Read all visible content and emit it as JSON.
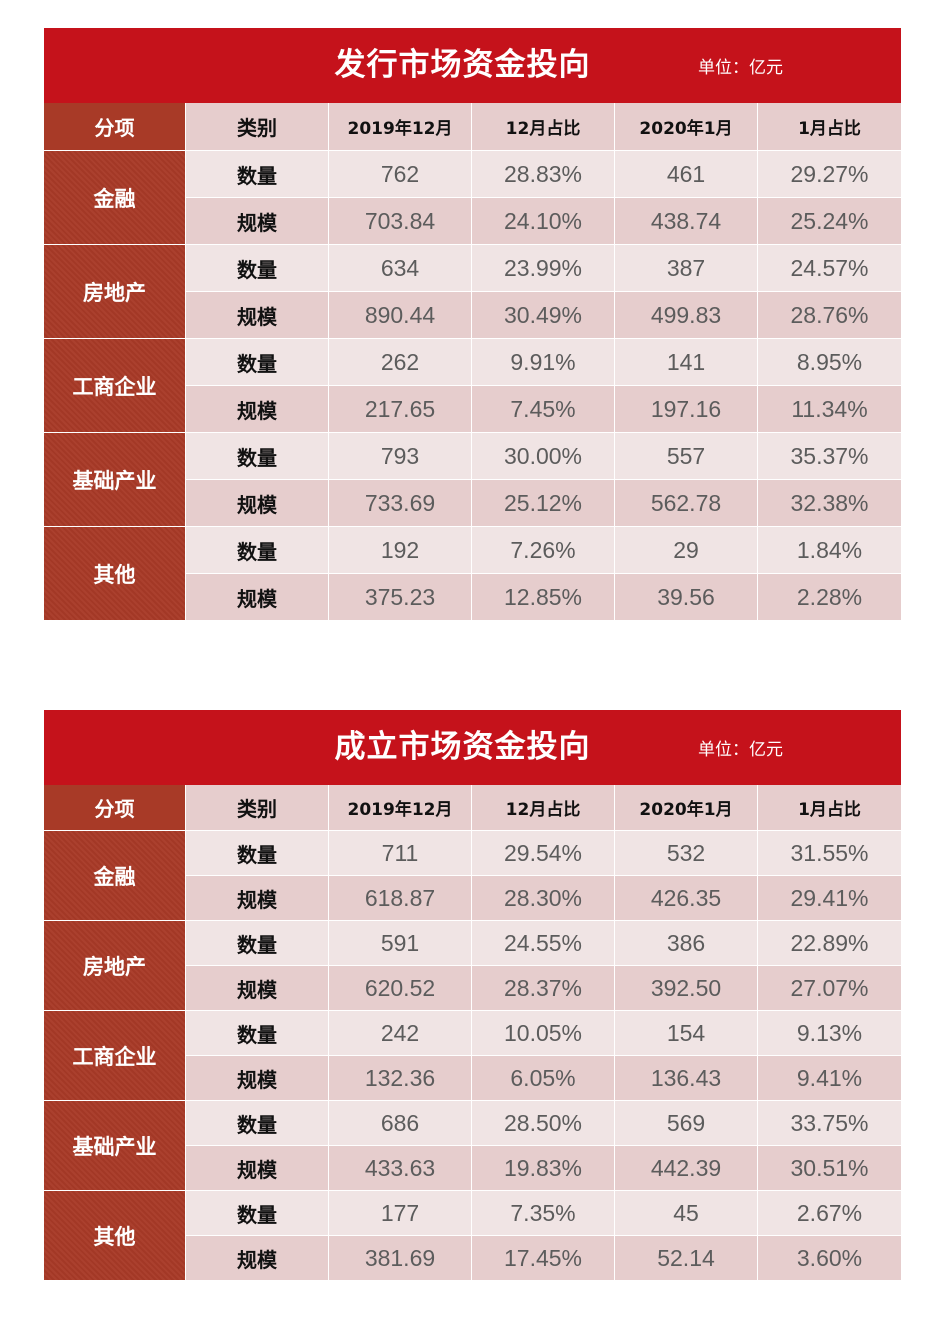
{
  "unit_label": "单位：亿元",
  "headers": [
    "分项",
    "类别",
    "2019年12月",
    "12月占比",
    "2020年1月",
    "1月占比"
  ],
  "tables": [
    {
      "title": "发行市场资金投向",
      "rows": [
        {
          "category": "金融",
          "items": [
            {
              "kind": "数量",
              "values": [
                "762",
                "28.83%",
                "461",
                "29.27%"
              ]
            },
            {
              "kind": "规模",
              "values": [
                "703.84",
                "24.10%",
                "438.74",
                "25.24%"
              ]
            }
          ]
        },
        {
          "category": "房地产",
          "items": [
            {
              "kind": "数量",
              "values": [
                "634",
                "23.99%",
                "387",
                "24.57%"
              ]
            },
            {
              "kind": "规模",
              "values": [
                "890.44",
                "30.49%",
                "499.83",
                "28.76%"
              ]
            }
          ]
        },
        {
          "category": "工商企业",
          "items": [
            {
              "kind": "数量",
              "values": [
                "262",
                "9.91%",
                "141",
                "8.95%"
              ]
            },
            {
              "kind": "规模",
              "values": [
                "217.65",
                "7.45%",
                "197.16",
                "11.34%"
              ]
            }
          ]
        },
        {
          "category": "基础产业",
          "items": [
            {
              "kind": "数量",
              "values": [
                "793",
                "30.00%",
                "557",
                "35.37%"
              ]
            },
            {
              "kind": "规模",
              "values": [
                "733.69",
                "25.12%",
                "562.78",
                "32.38%"
              ]
            }
          ]
        },
        {
          "category": "其他",
          "items": [
            {
              "kind": "数量",
              "values": [
                "192",
                "7.26%",
                "29",
                "1.84%"
              ]
            },
            {
              "kind": "规模",
              "values": [
                "375.23",
                "12.85%",
                "39.56",
                "2.28%"
              ]
            }
          ]
        }
      ]
    },
    {
      "title": "成立市场资金投向",
      "rows": [
        {
          "category": "金融",
          "items": [
            {
              "kind": "数量",
              "values": [
                "711",
                "29.54%",
                "532",
                "31.55%"
              ]
            },
            {
              "kind": "规模",
              "values": [
                "618.87",
                "28.30%",
                "426.35",
                "29.41%"
              ]
            }
          ]
        },
        {
          "category": "房地产",
          "items": [
            {
              "kind": "数量",
              "values": [
                "591",
                "24.55%",
                "386",
                "22.89%"
              ]
            },
            {
              "kind": "规模",
              "values": [
                "620.52",
                "28.37%",
                "392.50",
                "27.07%"
              ]
            }
          ]
        },
        {
          "category": "工商企业",
          "items": [
            {
              "kind": "数量",
              "values": [
                "242",
                "10.05%",
                "154",
                "9.13%"
              ]
            },
            {
              "kind": "规模",
              "values": [
                "132.36",
                "6.05%",
                "136.43",
                "9.41%"
              ]
            }
          ]
        },
        {
          "category": "基础产业",
          "items": [
            {
              "kind": "数量",
              "values": [
                "686",
                "28.50%",
                "569",
                "33.75%"
              ]
            },
            {
              "kind": "规模",
              "values": [
                "433.63",
                "19.83%",
                "442.39",
                "30.51%"
              ]
            }
          ]
        },
        {
          "category": "其他",
          "items": [
            {
              "kind": "数量",
              "values": [
                "177",
                "7.35%",
                "45",
                "2.67%"
              ]
            },
            {
              "kind": "规模",
              "values": [
                "381.69",
                "17.45%",
                "52.14",
                "3.60%"
              ]
            }
          ]
        }
      ]
    }
  ]
}
